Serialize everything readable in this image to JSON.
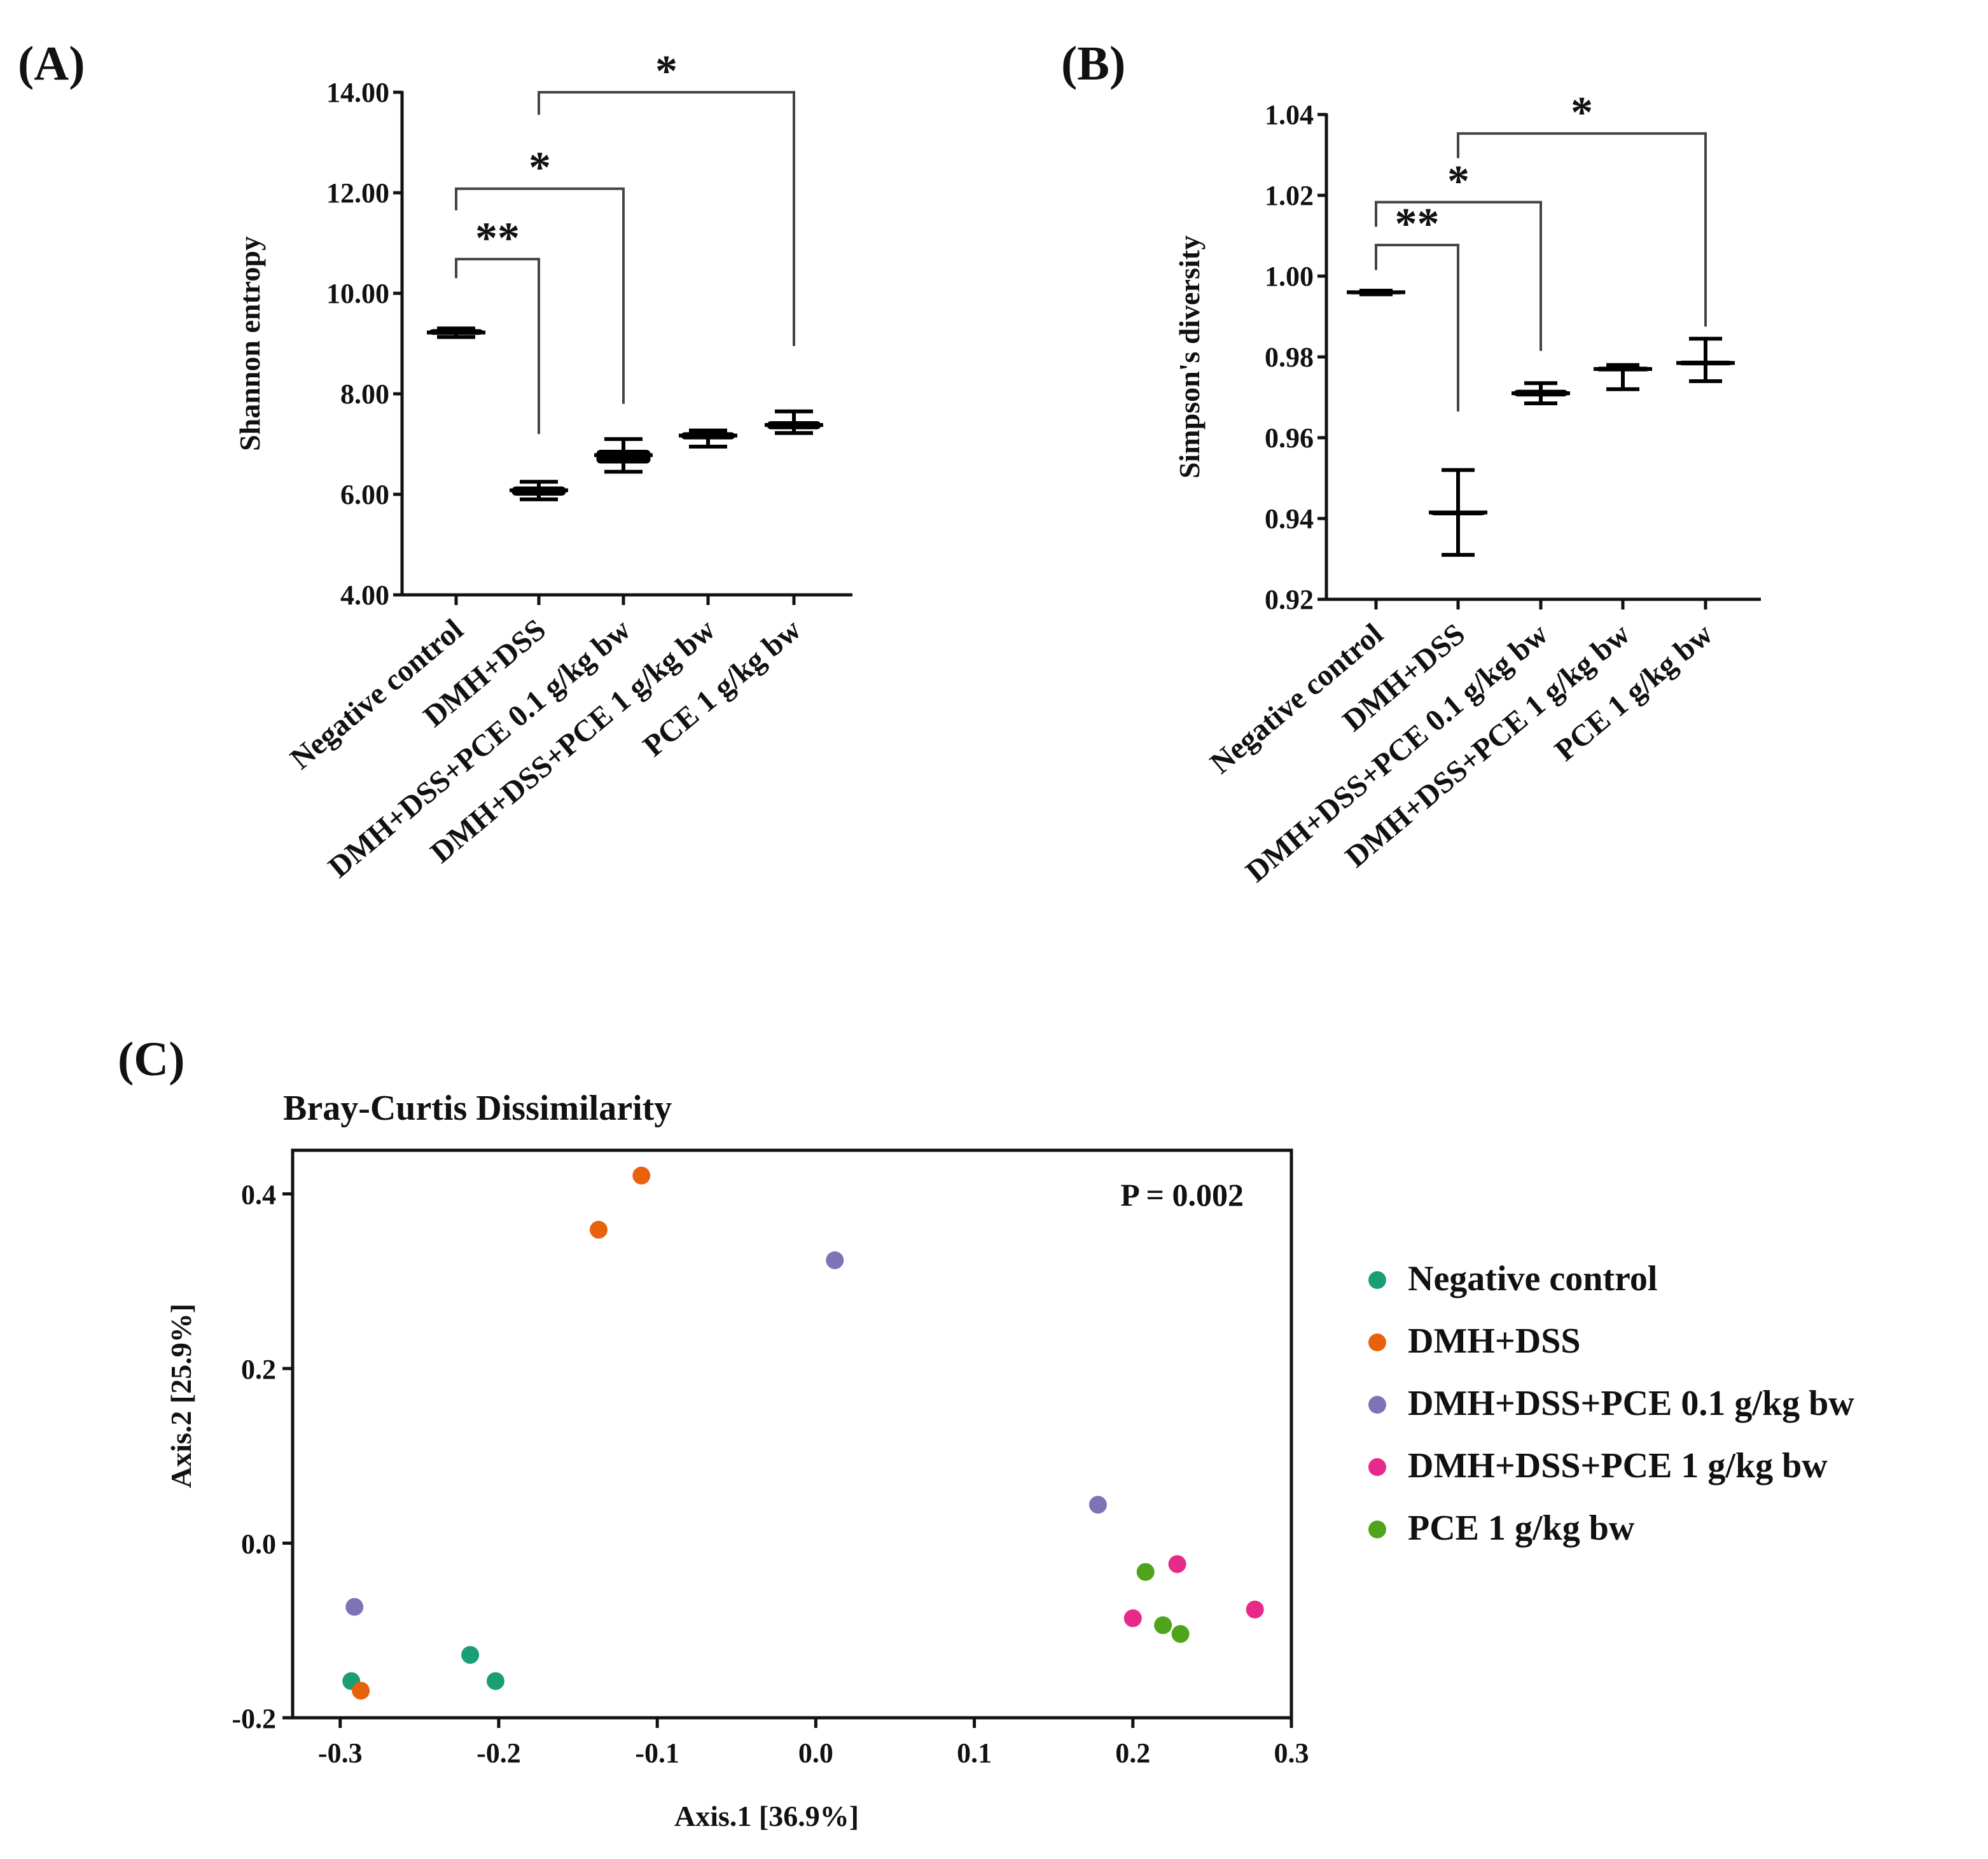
{
  "panels": {
    "A": "(A)",
    "B": "(B)",
    "C": "(C)"
  },
  "chart_data": [
    {
      "id": "A",
      "type": "box",
      "ylabel": "Shannon entropy",
      "ylim": [
        4,
        14
      ],
      "yticks": [
        "4.00",
        "6.00",
        "8.00",
        "10.00",
        "12.00",
        "14.00"
      ],
      "categories": [
        "Negative control",
        "DMH+DSS",
        "DMH+DSS+PCE 0.1 g/kg bw",
        "DMH+DSS+PCE 1 g/kg bw",
        "PCE 1 g/kg bw"
      ],
      "groups": [
        {
          "min": 9.13,
          "q1": 9.18,
          "median": 9.22,
          "q3": 9.28,
          "max": 9.3
        },
        {
          "min": 5.9,
          "q1": 5.98,
          "median": 6.08,
          "q3": 6.15,
          "max": 6.25
        },
        {
          "min": 6.45,
          "q1": 6.62,
          "median": 6.78,
          "q3": 6.88,
          "max": 7.1
        },
        {
          "min": 6.95,
          "q1": 7.1,
          "median": 7.17,
          "q3": 7.23,
          "max": 7.27
        },
        {
          "min": 7.22,
          "q1": 7.3,
          "median": 7.38,
          "q3": 7.45,
          "max": 7.65
        }
      ],
      "significance": [
        {
          "from": 0,
          "to": 1,
          "label": "**",
          "y": 10.68,
          "left_end": 10.3,
          "right_end": 7.2
        },
        {
          "from": 0,
          "to": 2,
          "label": "*",
          "y": 12.08,
          "left_end": 11.65,
          "right_end": 7.8
        },
        {
          "from": 1,
          "to": 4,
          "label": "*",
          "y": 14.0,
          "left_end": 13.55,
          "right_end": 8.95
        }
      ]
    },
    {
      "id": "B",
      "type": "box",
      "ylabel": "Simpson's diversity",
      "ylim": [
        0.92,
        1.04
      ],
      "yticks": [
        "0.92",
        "0.94",
        "0.96",
        "0.98",
        "1.00",
        "1.02",
        "1.04"
      ],
      "categories": [
        "Negative control",
        "DMH+DSS",
        "DMH+DSS+PCE 0.1 g/kg bw",
        "DMH+DSS+PCE 1 g/kg bw",
        "PCE 1 g/kg bw"
      ],
      "groups": [
        {
          "min": 0.9955,
          "q1": 0.9958,
          "median": 0.996,
          "q3": 0.9962,
          "max": 0.9964
        },
        {
          "min": 0.931,
          "q1": 0.9415,
          "median": 0.9415,
          "q3": 0.9415,
          "max": 0.952
        },
        {
          "min": 0.9685,
          "q1": 0.9703,
          "median": 0.971,
          "q3": 0.9718,
          "max": 0.9735
        },
        {
          "min": 0.972,
          "q1": 0.9765,
          "median": 0.977,
          "q3": 0.9775,
          "max": 0.978
        },
        {
          "min": 0.974,
          "q1": 0.978,
          "median": 0.9785,
          "q3": 0.979,
          "max": 0.9845
        }
      ],
      "significance": [
        {
          "from": 0,
          "to": 1,
          "label": "**",
          "y": 1.0077,
          "left_end": 1.0015,
          "right_end": 0.9665
        },
        {
          "from": 0,
          "to": 2,
          "label": "*",
          "y": 1.0183,
          "left_end": 1.0122,
          "right_end": 0.9815
        },
        {
          "from": 1,
          "to": 4,
          "label": "*",
          "y": 1.0353,
          "left_end": 1.0292,
          "right_end": 0.9875
        }
      ]
    },
    {
      "id": "C",
      "type": "scatter",
      "title": "Bray-Curtis Dissimilarity",
      "xlabel": "Axis.1 [36.9%]",
      "ylabel": "Axis.2 [25.9%]",
      "xlim": [
        -0.33,
        0.3
      ],
      "ylim": [
        -0.2,
        0.45
      ],
      "xticks": [
        "-0.3",
        "-0.2",
        "-0.1",
        "0.0",
        "0.1",
        "0.2",
        "0.3"
      ],
      "yticks": [
        "-0.2",
        "0.0",
        "0.2",
        "0.4"
      ],
      "annotation": "P = 0.002",
      "series": [
        {
          "name": "Negative control",
          "color": "#1b9e77",
          "points": [
            [
              -0.293,
              -0.158
            ],
            [
              -0.218,
              -0.128
            ],
            [
              -0.202,
              -0.158
            ]
          ]
        },
        {
          "name": "DMH+DSS",
          "color": "#e8620c",
          "points": [
            [
              -0.137,
              0.359
            ],
            [
              -0.11,
              0.421
            ],
            [
              -0.287,
              -0.169
            ]
          ]
        },
        {
          "name": "DMH+DSS+PCE 0.1 g/kg bw",
          "color": "#7f73b8",
          "points": [
            [
              0.012,
              0.324
            ],
            [
              0.178,
              0.044
            ],
            [
              -0.291,
              -0.073
            ]
          ]
        },
        {
          "name": "DMH+DSS+PCE 1 g/kg bw",
          "color": "#e7298a",
          "points": [
            [
              0.228,
              -0.024
            ],
            [
              0.2,
              -0.086
            ],
            [
              0.277,
              -0.076
            ]
          ]
        },
        {
          "name": "PCE 1 g/kg bw",
          "color": "#4fa41c",
          "points": [
            [
              0.208,
              -0.033
            ],
            [
              0.219,
              -0.094
            ],
            [
              0.23,
              -0.104
            ]
          ]
        }
      ]
    }
  ]
}
